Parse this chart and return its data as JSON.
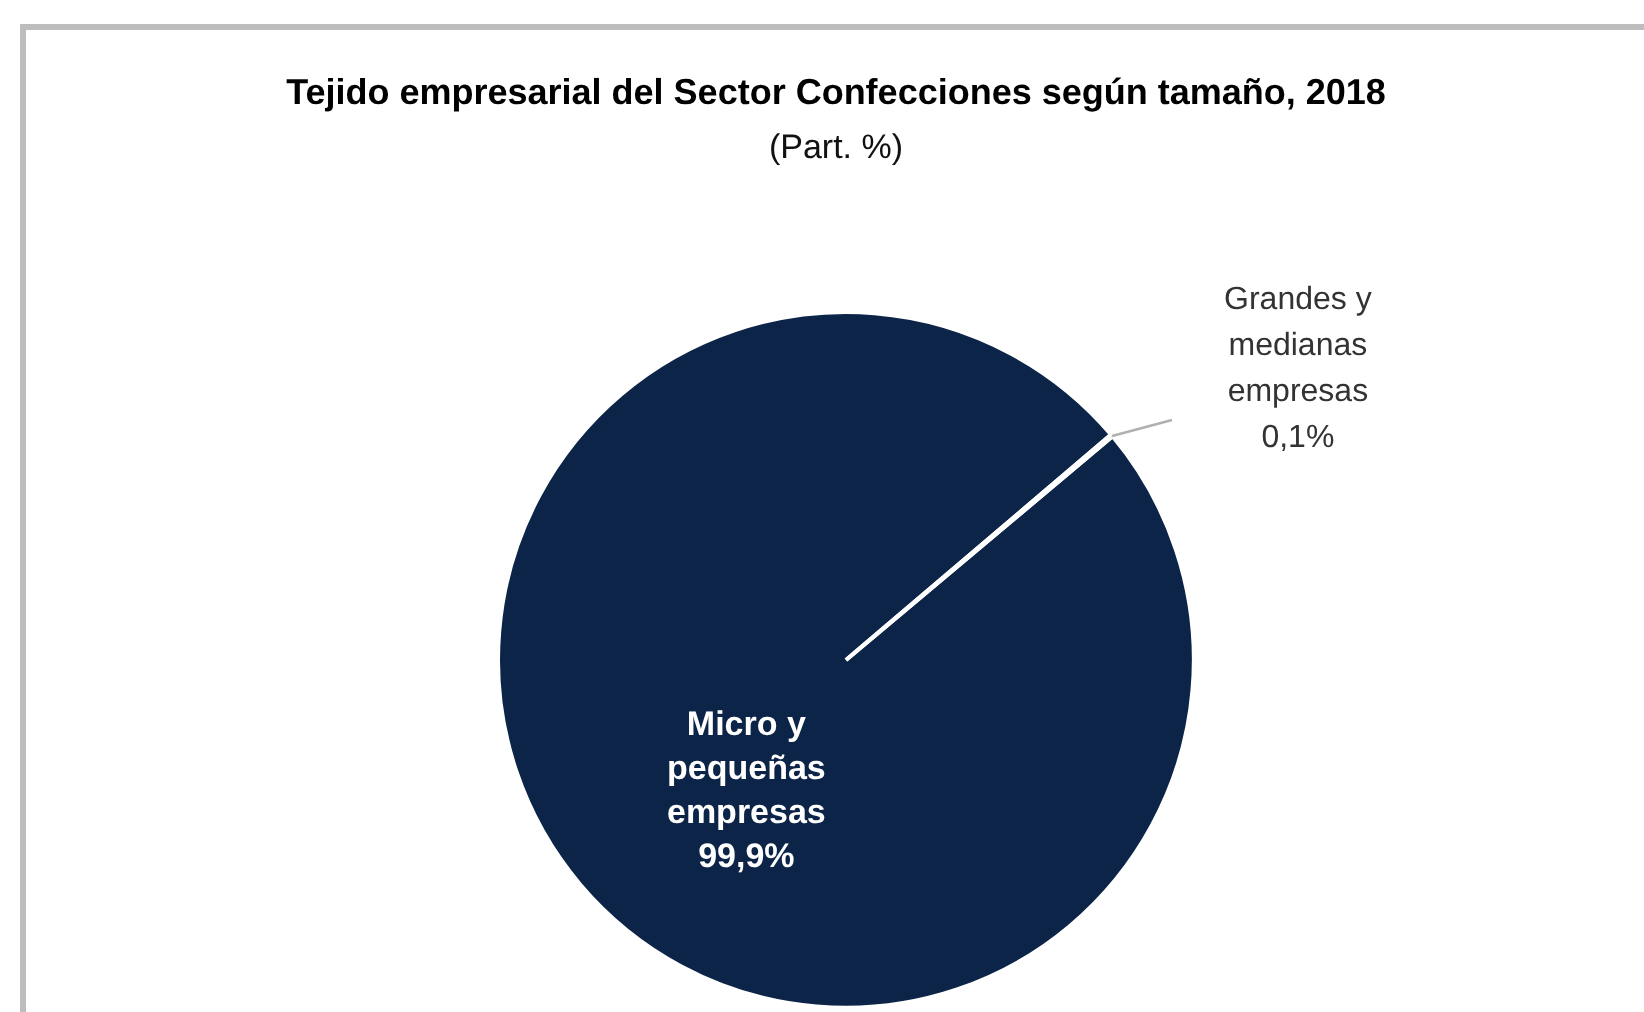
{
  "chart_data": {
    "type": "pie",
    "title": "Tejido empresarial del Sector Confecciones según tamaño, 2018",
    "subtitle": "(Part. %)",
    "categories": [
      "Micro y pequeñas empresas",
      "Grandes y medianas empresas"
    ],
    "values": [
      99.9,
      0.1
    ],
    "colors": [
      "#0b2447",
      "#ffffff"
    ],
    "value_labels": [
      "99,9%",
      "0,1%"
    ],
    "legend": false
  }
}
